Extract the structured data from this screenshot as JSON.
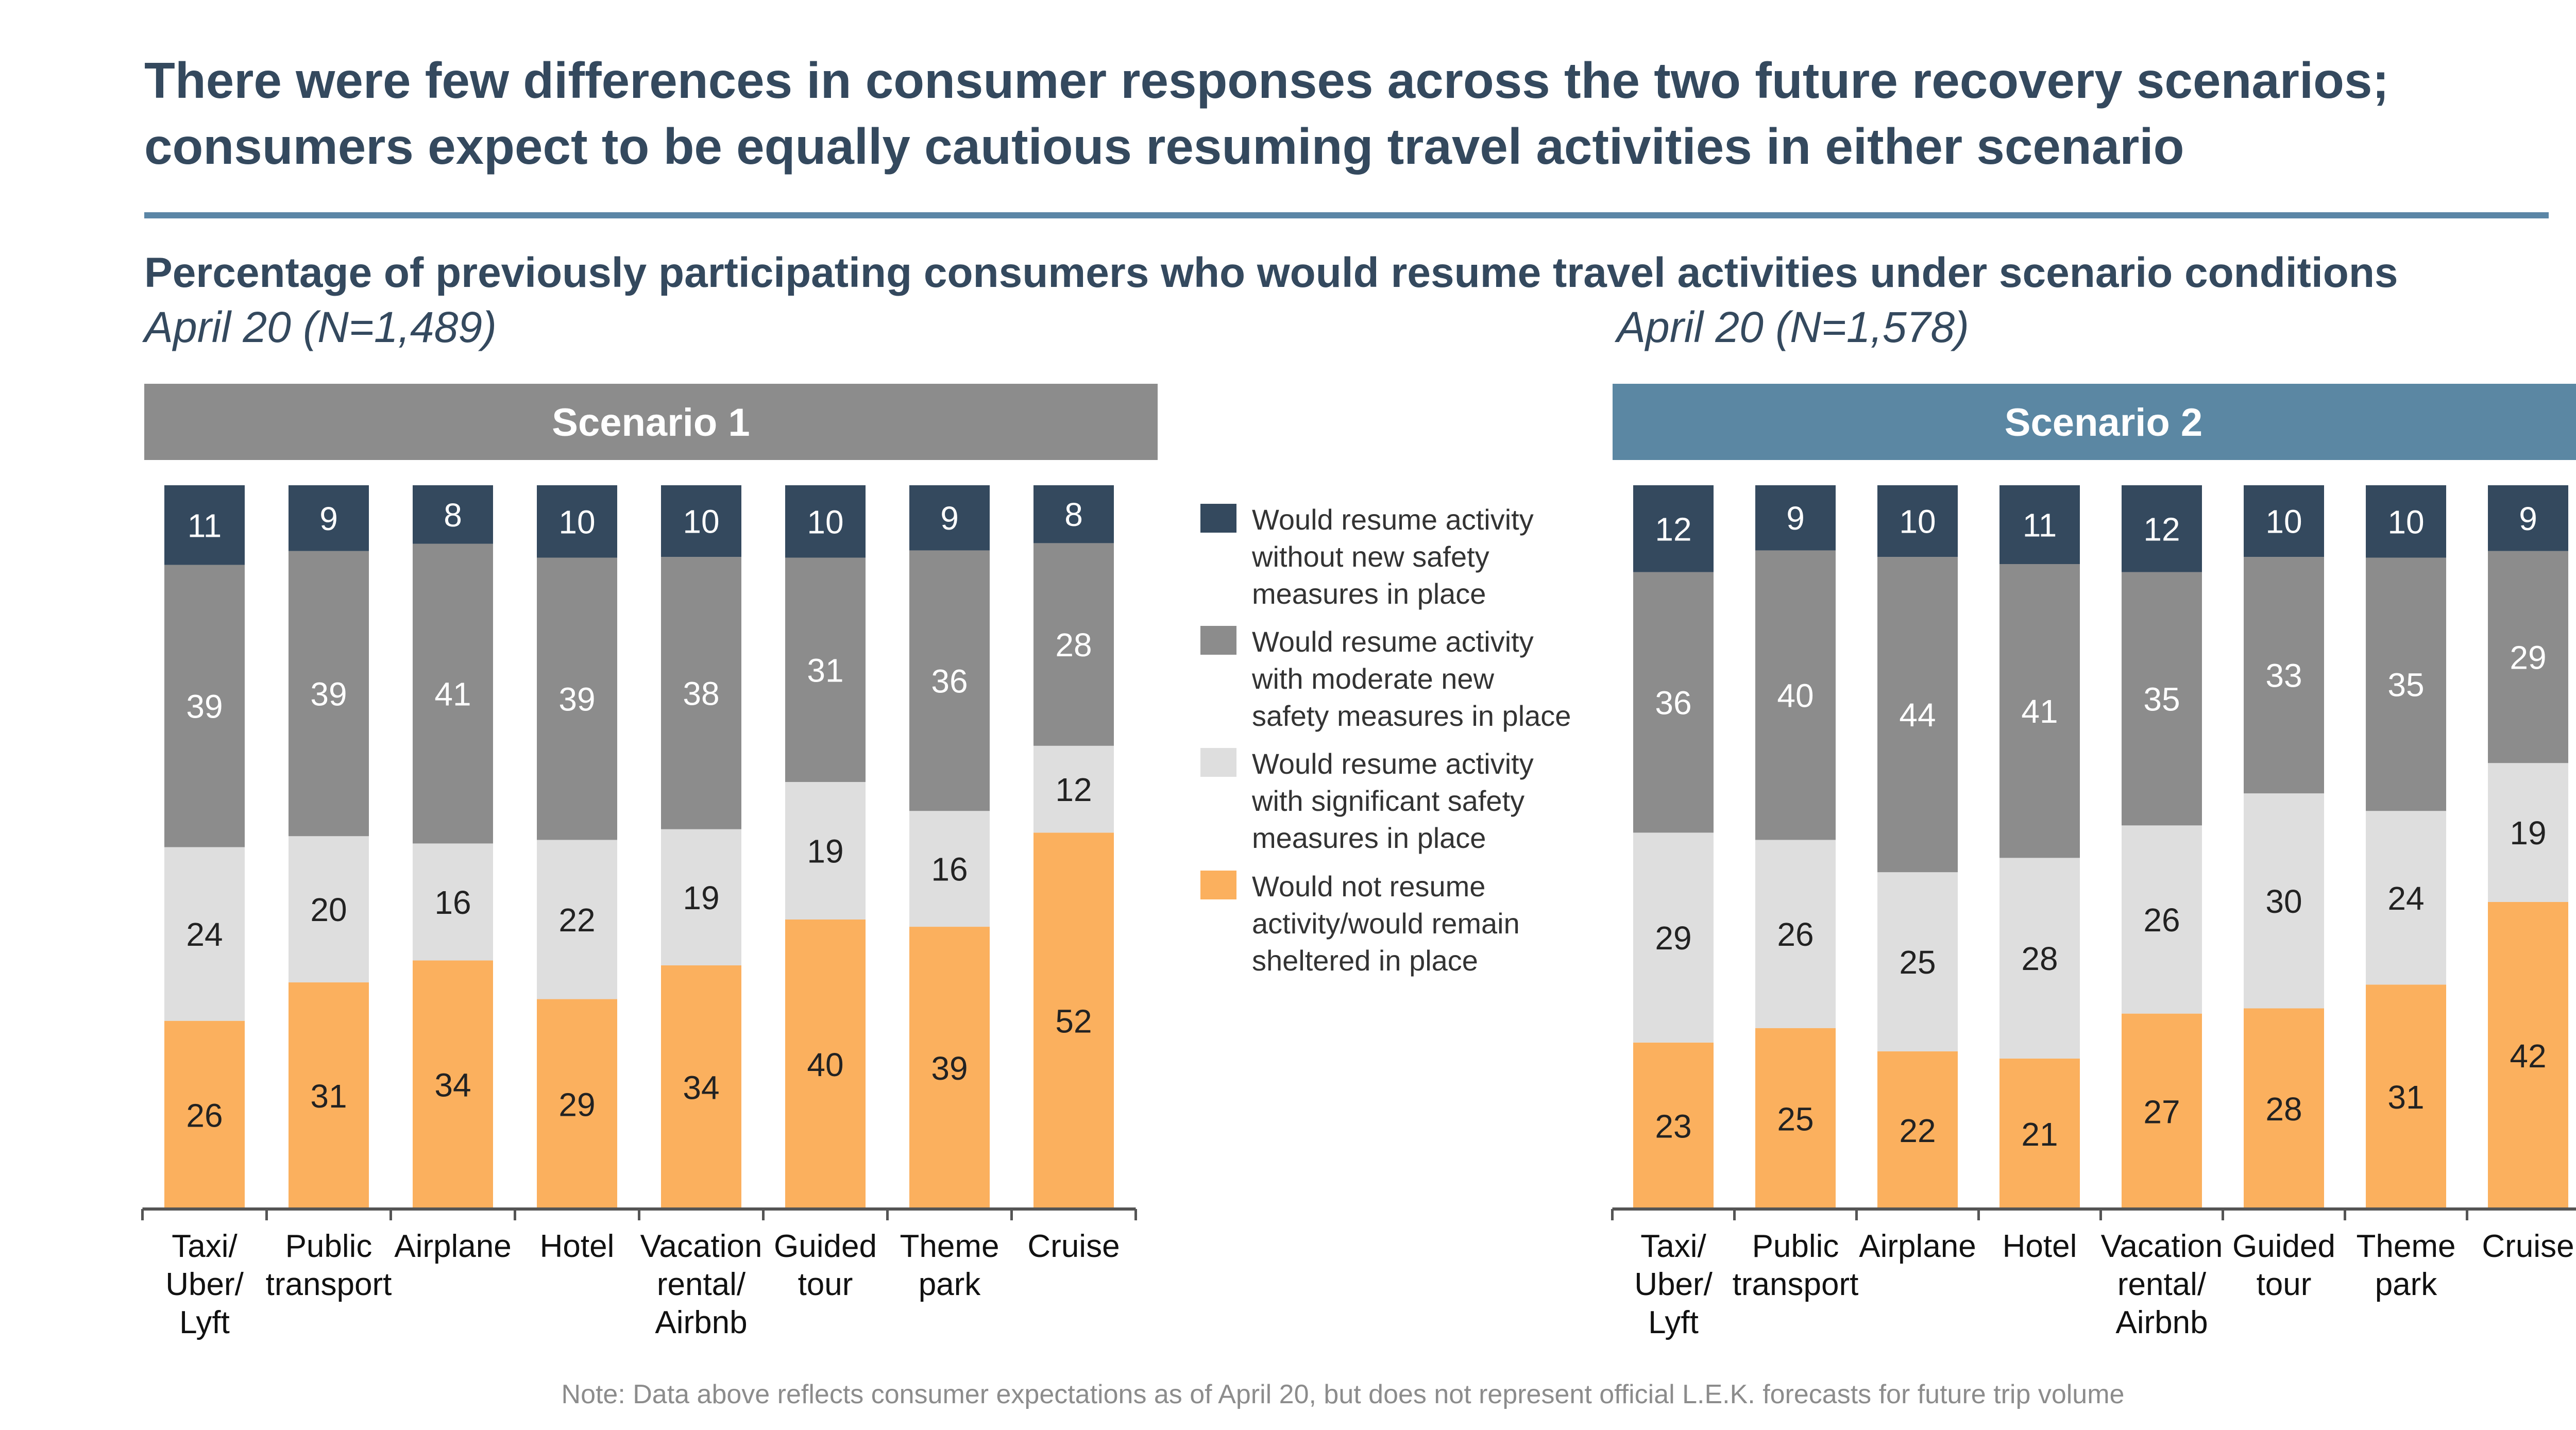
{
  "headline": {
    "line1": "There were few differences in consumer responses across the two future recovery scenarios;",
    "line2": "consumers expect to be equally cautious resuming travel activities in either scenario"
  },
  "subtitle": "Percentage of previously participating consumers who would resume travel activities under scenario conditions",
  "note": "Note: Data above reflects consumer expectations as of April 20, but does not represent official L.E.K. forecasts for future trip volume",
  "colors": {
    "title_text": "#34495e",
    "rule": "#5b86a6",
    "scenario1_header": "#8c8c8c",
    "scenario2_header": "#5b87a3",
    "without_safety": "#34495e",
    "moderate_safety": "#8c8c8c",
    "significant_safety": "#dedede",
    "not_resume": "#fbb05e"
  },
  "legend": [
    {
      "key": "without_safety",
      "lines": [
        "Would resume activity",
        "without new safety",
        "measures in place"
      ]
    },
    {
      "key": "moderate_safety",
      "lines": [
        "Would resume activity",
        "with moderate new",
        "safety measures in place"
      ]
    },
    {
      "key": "significant_safety",
      "lines": [
        "Would resume activity",
        "with significant safety",
        "measures in place"
      ]
    },
    {
      "key": "not_resume",
      "lines": [
        "Would not resume",
        "activity/would remain",
        "sheltered in place"
      ]
    }
  ],
  "chart_data": [
    {
      "type": "bar",
      "stacked": true,
      "title": "Scenario 1",
      "sample_label": "April 20 (N=1,489)",
      "categories": [
        "Taxi/ Uber/ Lyft",
        "Public transport",
        "Airplane",
        "Hotel",
        "Vacation rental/ Airbnb",
        "Guided tour",
        "Theme park",
        "Cruise"
      ],
      "category_lines": [
        [
          "Taxi/",
          "Uber/",
          "Lyft"
        ],
        [
          "Public",
          "transport"
        ],
        [
          "Airplane"
        ],
        [
          "Hotel"
        ],
        [
          "Vacation",
          "rental/",
          "Airbnb"
        ],
        [
          "Guided",
          "tour"
        ],
        [
          "Theme",
          "park"
        ],
        [
          "Cruise"
        ]
      ],
      "series": [
        {
          "key": "not_resume",
          "name": "Would not resume activity/would remain sheltered in place",
          "values": [
            26,
            31,
            34,
            29,
            34,
            40,
            39,
            52
          ]
        },
        {
          "key": "significant_safety",
          "name": "Would resume activity with significant safety measures in place",
          "values": [
            24,
            20,
            16,
            22,
            19,
            19,
            16,
            12
          ]
        },
        {
          "key": "moderate_safety",
          "name": "Would resume activity with moderate new safety measures in place",
          "values": [
            39,
            39,
            41,
            39,
            38,
            31,
            36,
            28
          ]
        },
        {
          "key": "without_safety",
          "name": "Would resume activity without new safety measures in place",
          "values": [
            11,
            9,
            8,
            10,
            10,
            10,
            9,
            8
          ]
        }
      ],
      "ylim": [
        0,
        100
      ]
    },
    {
      "type": "bar",
      "stacked": true,
      "title": "Scenario 2",
      "sample_label": "April 20 (N=1,578)",
      "categories": [
        "Taxi/ Uber/ Lyft",
        "Public transport",
        "Airplane",
        "Hotel",
        "Vacation rental/ Airbnb",
        "Guided tour",
        "Theme park",
        "Cruise"
      ],
      "category_lines": [
        [
          "Taxi/",
          "Uber/",
          "Lyft"
        ],
        [
          "Public",
          "transport"
        ],
        [
          "Airplane"
        ],
        [
          "Hotel"
        ],
        [
          "Vacation",
          "rental/",
          "Airbnb"
        ],
        [
          "Guided",
          "tour"
        ],
        [
          "Theme",
          "park"
        ],
        [
          "Cruise"
        ]
      ],
      "series": [
        {
          "key": "not_resume",
          "name": "Would not resume activity/would remain sheltered in place",
          "values": [
            23,
            25,
            22,
            21,
            27,
            28,
            31,
            42
          ]
        },
        {
          "key": "significant_safety",
          "name": "Would resume activity with significant safety measures in place",
          "values": [
            29,
            26,
            25,
            28,
            26,
            30,
            24,
            19
          ]
        },
        {
          "key": "moderate_safety",
          "name": "Would resume activity with moderate new safety measures in place",
          "values": [
            36,
            40,
            44,
            41,
            35,
            33,
            35,
            29
          ]
        },
        {
          "key": "without_safety",
          "name": "Would resume activity without new safety measures in place",
          "values": [
            12,
            9,
            10,
            11,
            12,
            10,
            10,
            9
          ]
        }
      ],
      "ylim": [
        0,
        100
      ]
    }
  ]
}
